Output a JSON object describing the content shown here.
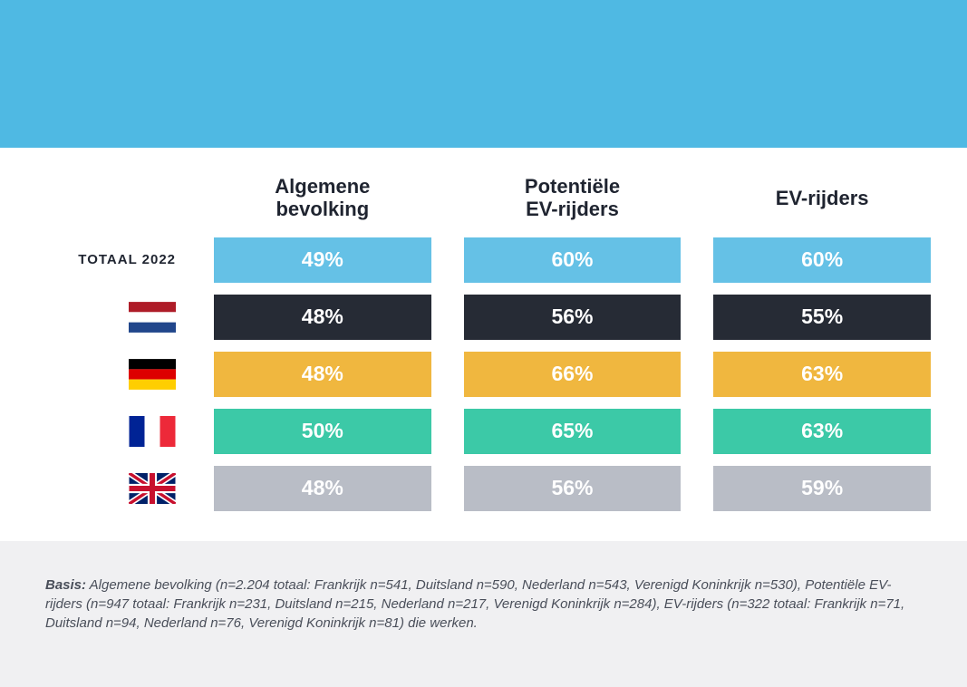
{
  "banner_color": "#4fb9e3",
  "columns": [
    "Algemene\nbevolking",
    "Potentiële\nEV-rijders",
    "EV-rijders"
  ],
  "rows": [
    {
      "key": "total",
      "label": "TOTAAL 2022",
      "bg": "#65c1e6",
      "values": [
        "49%",
        "60%",
        "60%"
      ]
    },
    {
      "key": "nl",
      "flag": "nl",
      "bg": "#262b35",
      "values": [
        "48%",
        "56%",
        "55%"
      ]
    },
    {
      "key": "de",
      "flag": "de",
      "bg": "#f0b73f",
      "values": [
        "48%",
        "66%",
        "63%"
      ]
    },
    {
      "key": "fr",
      "flag": "fr",
      "bg": "#3cc9a7",
      "values": [
        "50%",
        "65%",
        "63%"
      ]
    },
    {
      "key": "uk",
      "flag": "uk",
      "bg": "#b9bdc6",
      "values": [
        "48%",
        "56%",
        "59%"
      ]
    }
  ],
  "footer_label": "Basis:",
  "footer_text": "Algemene bevolking (n=2.204 totaal: Frankrijk n=541, Duitsland n=590, Nederland n=543, Verenigd Koninkrijk n=530), Potentiële EV-rijders (n=947 totaal: Frankrijk n=231, Duitsland n=215, Nederland n=217, Verenigd Koninkrijk n=284), EV-rijders (n=322 totaal: Frankrijk n=71, Duitsland n=94, Nederland n=76, Verenigd Koninkrijk n=81) die werken.",
  "flags": {
    "nl": {
      "stripes": [
        {
          "c": "#ae1c28"
        },
        {
          "c": "#ffffff"
        },
        {
          "c": "#21468b"
        }
      ],
      "dir": "h"
    },
    "de": {
      "stripes": [
        {
          "c": "#000000"
        },
        {
          "c": "#dd0000"
        },
        {
          "c": "#ffce00"
        }
      ],
      "dir": "h"
    },
    "fr": {
      "stripes": [
        {
          "c": "#002395"
        },
        {
          "c": "#ffffff"
        },
        {
          "c": "#ed2939"
        }
      ],
      "dir": "v"
    },
    "uk": "uk"
  }
}
